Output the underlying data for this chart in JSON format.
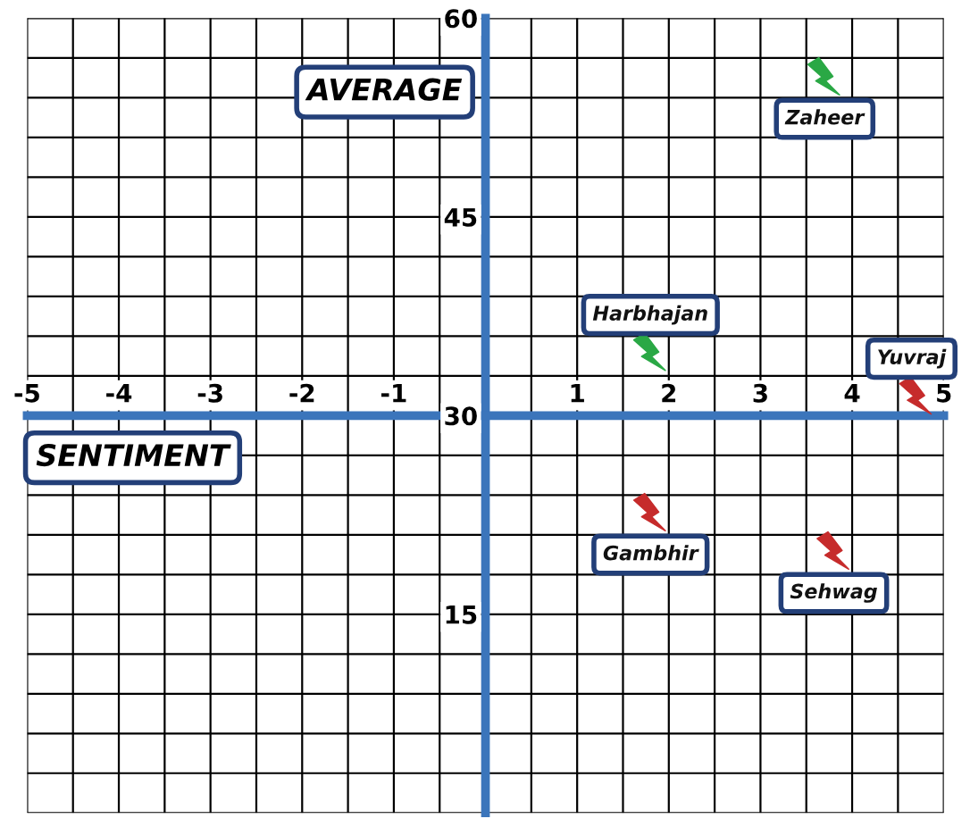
{
  "chart_data": {
    "type": "scatter",
    "xlabel": "SENTIMENT",
    "ylabel": "AVERAGE",
    "xlim": [
      -5,
      5
    ],
    "ylim": [
      0,
      60
    ],
    "xticks": [
      -5,
      {
        "value": -4.5,
        "label": null
      },
      -4,
      {
        "value": -3.5,
        "label": null
      },
      -3,
      {
        "value": -2.5,
        "label": null
      },
      -2,
      {
        "value": -1.5,
        "label": null
      },
      -1,
      {
        "value": -0.5,
        "label": null
      },
      {
        "value": 0,
        "label": null
      },
      {
        "value": 0.5,
        "label": null
      },
      1,
      {
        "value": 1.5,
        "label": null
      },
      2,
      {
        "value": 2.5,
        "label": null
      },
      3,
      {
        "value": 3.5,
        "label": null
      },
      4,
      {
        "value": 4.5,
        "label": null
      },
      5
    ],
    "yticks": [
      {
        "value": 0,
        "label": null
      },
      {
        "value": 3,
        "label": null
      },
      {
        "value": 6,
        "label": null
      },
      {
        "value": 9,
        "label": null
      },
      {
        "value": 12,
        "label": null
      },
      15,
      {
        "value": 18,
        "label": null
      },
      {
        "value": 21,
        "label": null
      },
      {
        "value": 24,
        "label": null
      },
      {
        "value": 27,
        "label": null
      },
      30,
      {
        "value": 33,
        "label": null
      },
      {
        "value": 36,
        "label": null
      },
      {
        "value": 39,
        "label": null
      },
      {
        "value": 42,
        "label": null
      },
      45,
      {
        "value": 48,
        "label": null
      },
      {
        "value": 51,
        "label": null
      },
      {
        "value": 54,
        "label": null
      },
      {
        "value": 57,
        "label": null
      },
      60
    ],
    "grid": true,
    "series": [
      {
        "name": "Zaheer",
        "color": "#2aa845",
        "x": [
          3.7
        ],
        "values": [
          55.4
        ]
      },
      {
        "name": "Harbhajan",
        "color": "#2aa845",
        "x": [
          1.8
        ],
        "values": [
          34.6
        ]
      },
      {
        "name": "Yuvraj",
        "color": "#c62b2b",
        "x": [
          4.7
        ],
        "values": [
          31.3
        ]
      },
      {
        "name": "Gambhir",
        "color": "#c62b2b",
        "x": [
          1.8
        ],
        "values": [
          22.5
        ]
      },
      {
        "name": "Sehwag",
        "color": "#c62b2b",
        "x": [
          3.8
        ],
        "values": [
          19.6
        ]
      }
    ]
  }
}
